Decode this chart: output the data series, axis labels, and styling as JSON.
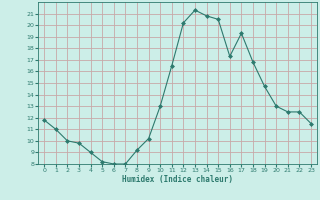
{
  "x": [
    0,
    1,
    2,
    3,
    4,
    5,
    6,
    7,
    8,
    9,
    10,
    11,
    12,
    13,
    14,
    15,
    16,
    17,
    18,
    19,
    20,
    21,
    22,
    23
  ],
  "y": [
    11.8,
    11.0,
    10.0,
    9.8,
    9.0,
    8.2,
    8.0,
    8.0,
    9.2,
    10.2,
    13.0,
    16.5,
    20.2,
    21.3,
    20.8,
    20.5,
    17.3,
    19.3,
    16.8,
    14.7,
    13.0,
    12.5,
    12.5,
    11.5
  ],
  "line_color": "#2d7a6e",
  "marker": "D",
  "marker_size": 2.0,
  "bg_color": "#cceee8",
  "grid_color": "#c8a8a8",
  "xlabel": "Humidex (Indice chaleur)",
  "ylim": [
    8,
    22
  ],
  "xlim": [
    -0.5,
    23.5
  ],
  "yticks": [
    8,
    9,
    10,
    11,
    12,
    13,
    14,
    15,
    16,
    17,
    18,
    19,
    20,
    21
  ],
  "xticks": [
    0,
    1,
    2,
    3,
    4,
    5,
    6,
    7,
    8,
    9,
    10,
    11,
    12,
    13,
    14,
    15,
    16,
    17,
    18,
    19,
    20,
    21,
    22,
    23
  ],
  "tick_color": "#2d7a6e",
  "label_color": "#2d7a6e"
}
